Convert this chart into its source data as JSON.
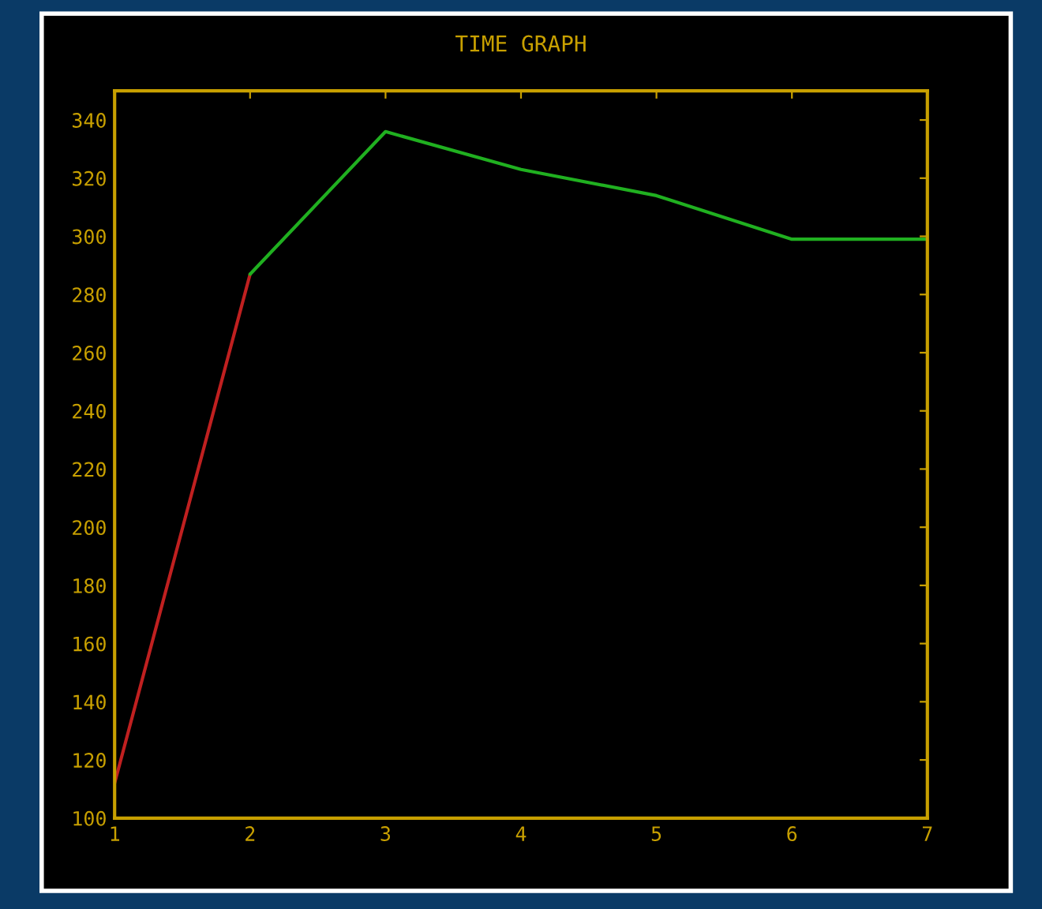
{
  "chart_data": {
    "type": "line",
    "title": "TIME GRAPH",
    "series": [
      {
        "color": "#c02020",
        "x": [
          1,
          2
        ],
        "values": [
          112,
          287
        ]
      },
      {
        "color": "#20b020",
        "x": [
          2,
          3,
          4,
          5,
          6,
          7
        ],
        "values": [
          287,
          336,
          323,
          314,
          299,
          299
        ]
      }
    ],
    "xlim": [
      1,
      7
    ],
    "xticks": [
      1,
      2,
      3,
      4,
      5,
      6,
      7
    ],
    "ylim": [
      100,
      350
    ],
    "yticks": [
      100,
      120,
      140,
      160,
      180,
      200,
      220,
      240,
      260,
      280,
      300,
      320,
      340
    ],
    "grid": false,
    "marker": "none",
    "line_style": "solid"
  }
}
